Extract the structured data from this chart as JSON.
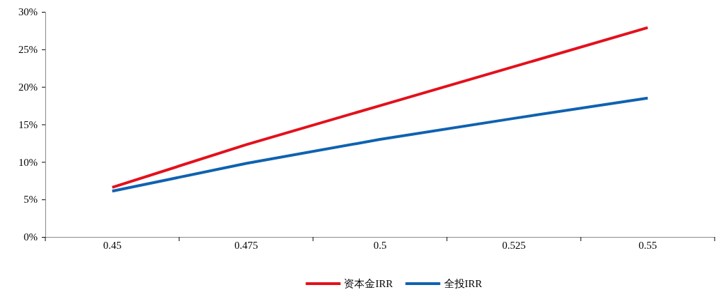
{
  "chart_data": {
    "type": "line",
    "categories": [
      "0.45",
      "0.475",
      "0.5",
      "0.525",
      "0.55"
    ],
    "series": [
      {
        "name": "资本金IRR",
        "color": "#e3101c",
        "values": [
          6.6,
          12.3,
          17.5,
          22.7,
          27.9
        ]
      },
      {
        "name": "全投IRR",
        "color": "#0f62b0",
        "values": [
          6.1,
          9.8,
          13.0,
          15.8,
          18.5
        ]
      }
    ],
    "ylim": [
      0,
      30
    ],
    "yticks": [
      {
        "value": 0,
        "label": "0%"
      },
      {
        "value": 5,
        "label": "5%"
      },
      {
        "value": 10,
        "label": "10%"
      },
      {
        "value": 15,
        "label": "15%"
      },
      {
        "value": 20,
        "label": "20%"
      },
      {
        "value": 25,
        "label": "25%"
      },
      {
        "value": 30,
        "label": "30%"
      }
    ],
    "grid": false,
    "legend": "bottom",
    "marker": "none",
    "line_style": "solid"
  }
}
